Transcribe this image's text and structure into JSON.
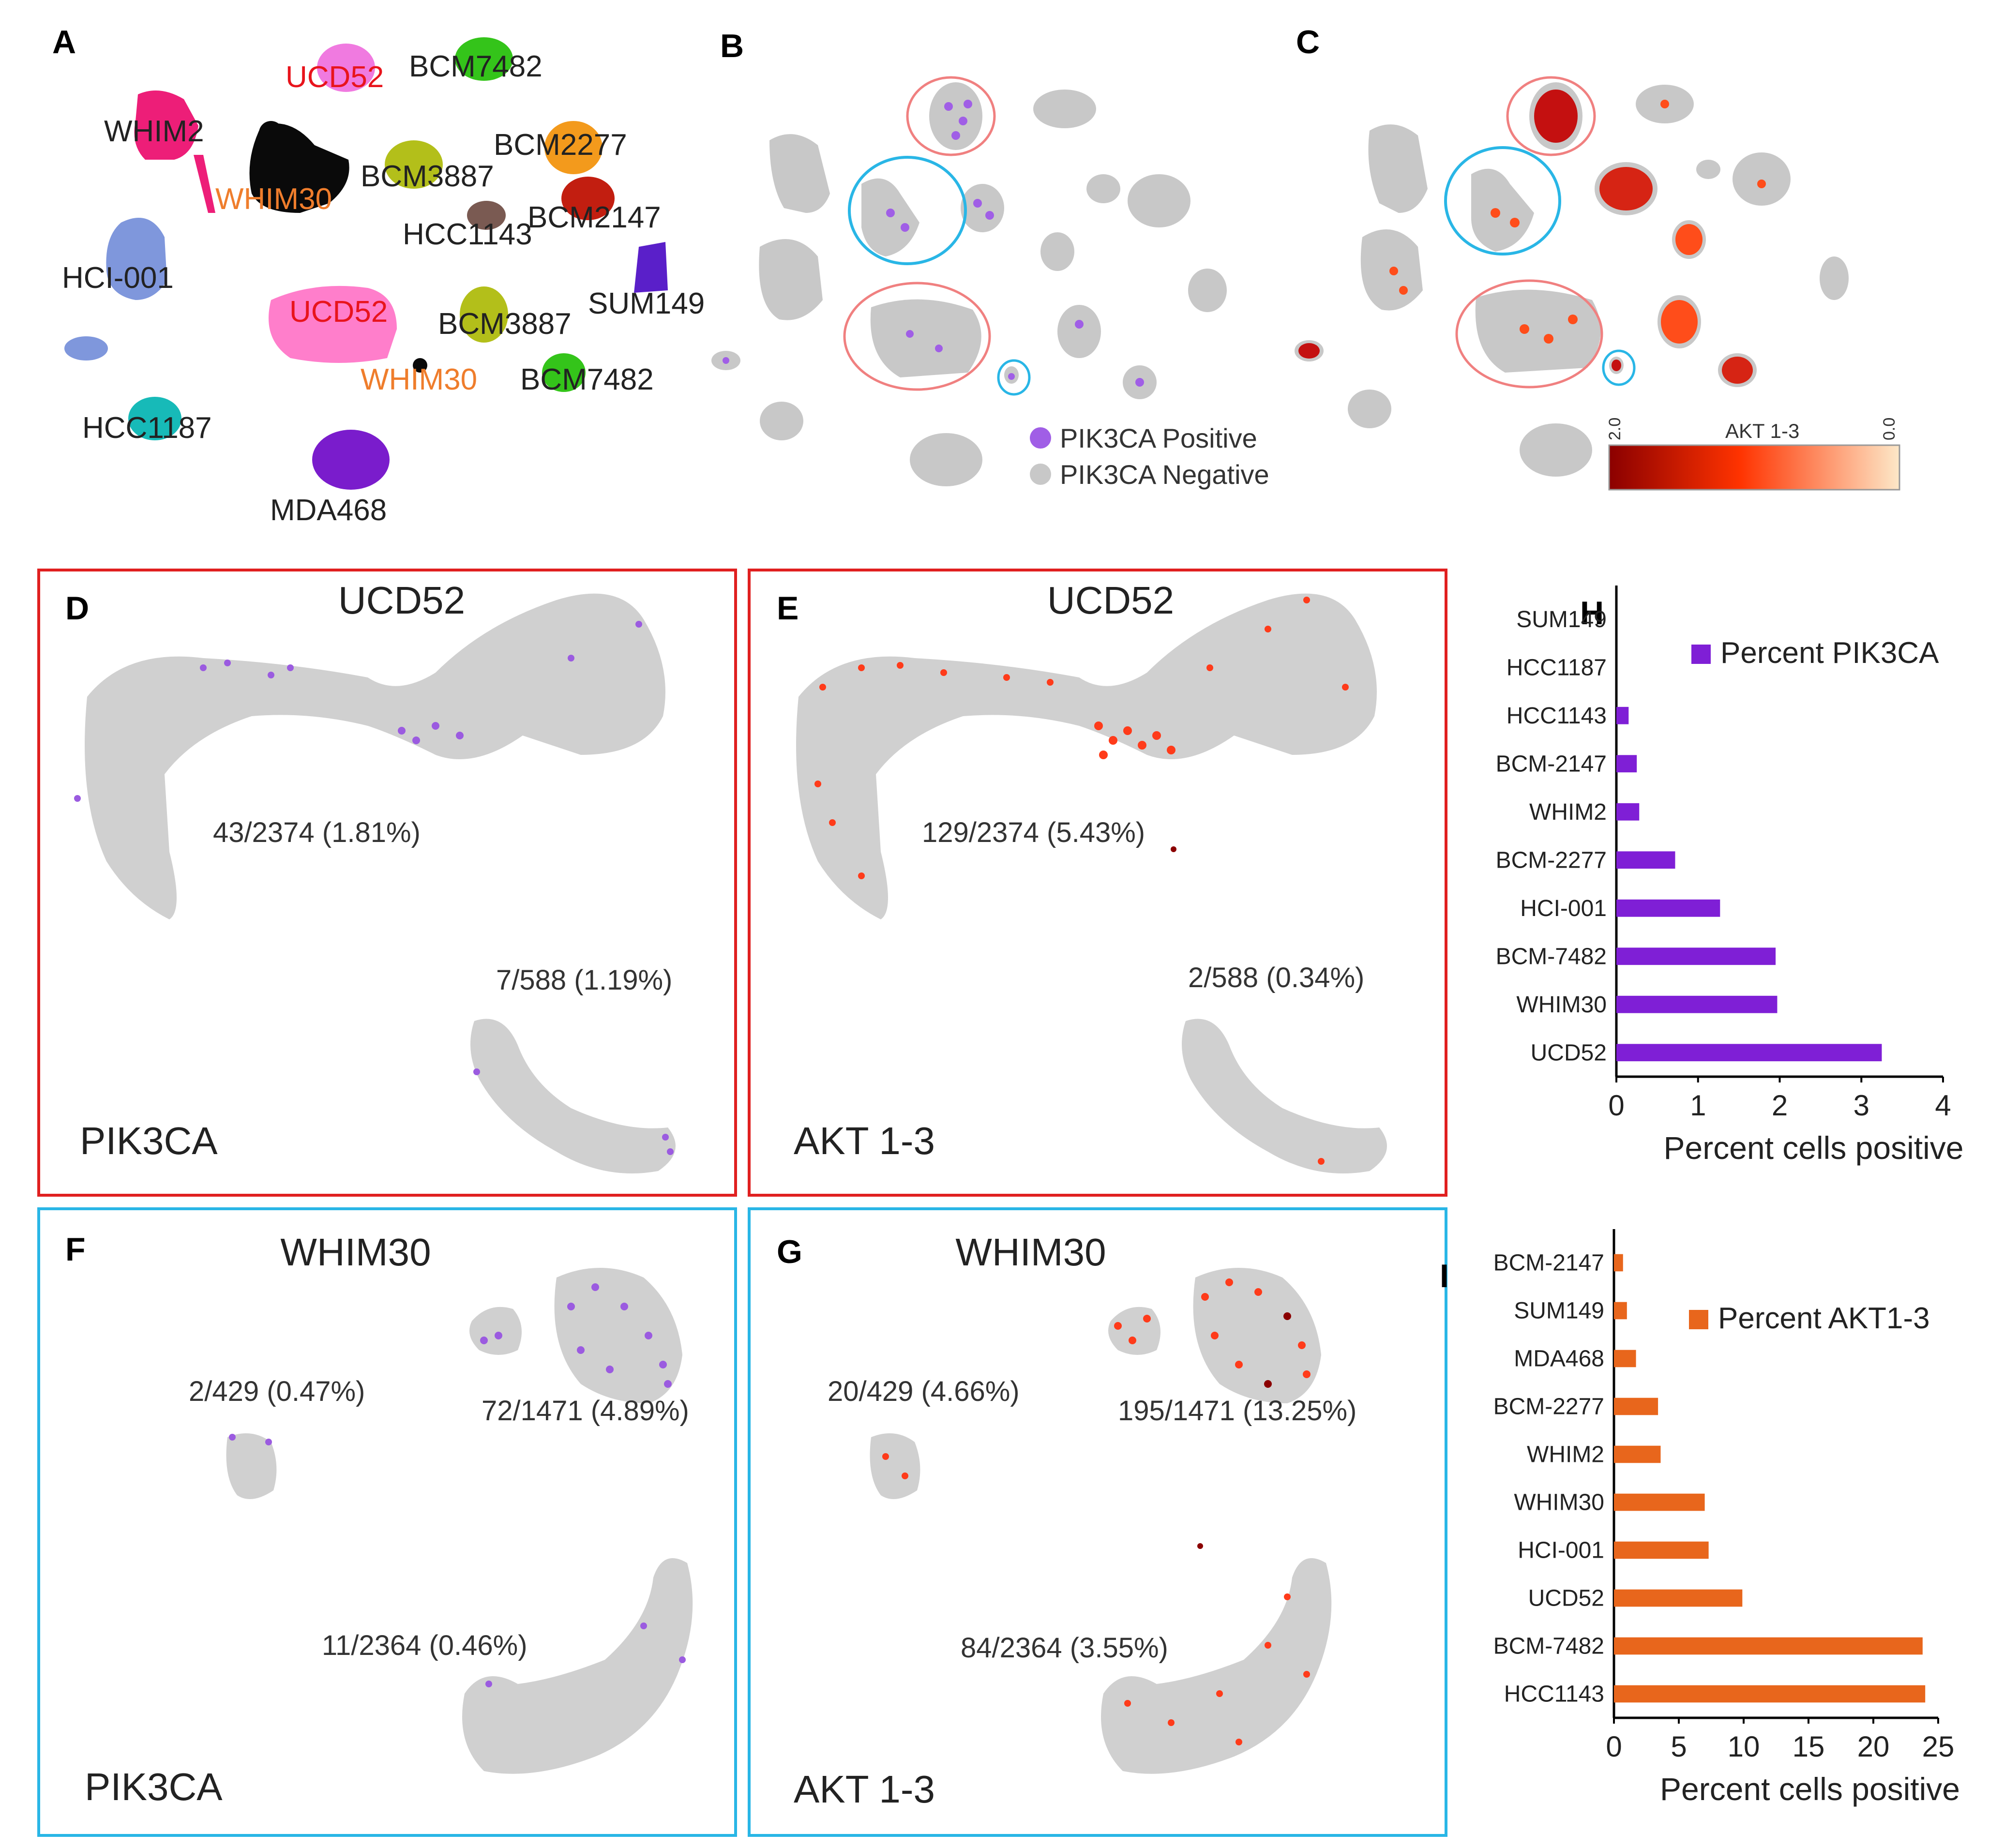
{
  "panel_letters": {
    "A": "A",
    "B": "B",
    "C": "C",
    "D": "D",
    "E": "E",
    "F": "F",
    "G": "G",
    "H": "H",
    "I": "I"
  },
  "panelA": {
    "labels": [
      {
        "text": "UCD52",
        "color": "#e8141c"
      },
      {
        "text": "BCM7482",
        "color": "#222222"
      },
      {
        "text": "WHIM2",
        "color": "#222222"
      },
      {
        "text": "BCM2277",
        "color": "#222222"
      },
      {
        "text": "BCM3887",
        "color": "#222222"
      },
      {
        "text": "WHIM30",
        "color": "#ef7d2c"
      },
      {
        "text": "BCM2147",
        "color": "#222222"
      },
      {
        "text": "HCC1143",
        "color": "#222222"
      },
      {
        "text": "HCI-001",
        "color": "#222222"
      },
      {
        "text": "UCD52",
        "color": "#e8141c"
      },
      {
        "text": "SUM149",
        "color": "#222222"
      },
      {
        "text": "BCM3887",
        "color": "#222222"
      },
      {
        "text": "WHIM30",
        "color": "#ef7d2c"
      },
      {
        "text": "BCM7482",
        "color": "#222222"
      },
      {
        "text": "HCC1187",
        "color": "#222222"
      },
      {
        "text": "MDA468",
        "color": "#222222"
      }
    ]
  },
  "panelB": {
    "legend": {
      "positive": "PIK3CA Positive",
      "negative": "PIK3CA Negative"
    },
    "colors": {
      "positive": "#a05ee6",
      "negative": "#c8c8c8"
    }
  },
  "panelC": {
    "colorbar": {
      "label": "AKT 1-3",
      "min_label": "0.0",
      "max_label": "2.0"
    },
    "colors": {
      "high": "#8b0000",
      "mid": "#ff3300",
      "low": "#fde8c8"
    }
  },
  "panelD": {
    "title": "UCD52",
    "gene": "PIK3CA",
    "stat1": "43/2374 (1.81%)",
    "stat2": "7/588 (1.19%)"
  },
  "panelE": {
    "title": "UCD52",
    "gene": "AKT 1-3",
    "stat1": "129/2374 (5.43%)",
    "stat2": "2/588 (0.34%)"
  },
  "panelF": {
    "title": "WHIM30",
    "gene": "PIK3CA",
    "stat1": "2/429 (0.47%)",
    "stat2": "72/1471 (4.89%)",
    "stat3": "11/2364 (0.46%)"
  },
  "panelG": {
    "title": "WHIM30",
    "gene": "AKT 1-3",
    "stat1": "20/429 (4.66%)",
    "stat2": "195/1471 (13.25%)",
    "stat3": "84/2364 (3.55%)"
  },
  "chart_data": [
    {
      "type": "bar",
      "orientation": "horizontal",
      "panel": "H",
      "categories": [
        "SUM149",
        "HCC1187",
        "HCC1143",
        "BCM-2147",
        "WHIM2",
        "BCM-2277",
        "HCI-001",
        "BCM-7482",
        "WHIM30",
        "UCD52"
      ],
      "series": [
        {
          "name": "Percent PIK3CA",
          "values": [
            0,
            0,
            0.15,
            0.25,
            0.28,
            0.72,
            1.27,
            1.95,
            1.97,
            3.25
          ]
        }
      ],
      "xlabel": "Percent cells positive",
      "xlim": [
        0,
        4
      ],
      "xticks": [
        0,
        1,
        2,
        3,
        4
      ],
      "legend": "top-right",
      "color": "#7f1fd6"
    },
    {
      "type": "bar",
      "orientation": "horizontal",
      "panel": "I",
      "categories": [
        "BCM-2147",
        "SUM149",
        "MDA468",
        "BCM-2277",
        "WHIM2",
        "WHIM30",
        "HCI-001",
        "UCD52",
        "BCM-7482",
        "HCC1143"
      ],
      "series": [
        {
          "name": "Percent AKT1-3",
          "values": [
            0.7,
            1.0,
            1.7,
            3.4,
            3.6,
            7.0,
            7.3,
            9.9,
            23.8,
            24.0
          ]
        }
      ],
      "xlabel": "Percent cells positive",
      "xlim": [
        0,
        25
      ],
      "xticks": [
        0,
        5,
        10,
        15,
        20,
        25
      ],
      "legend": "top-right",
      "color": "#e8661c"
    }
  ]
}
